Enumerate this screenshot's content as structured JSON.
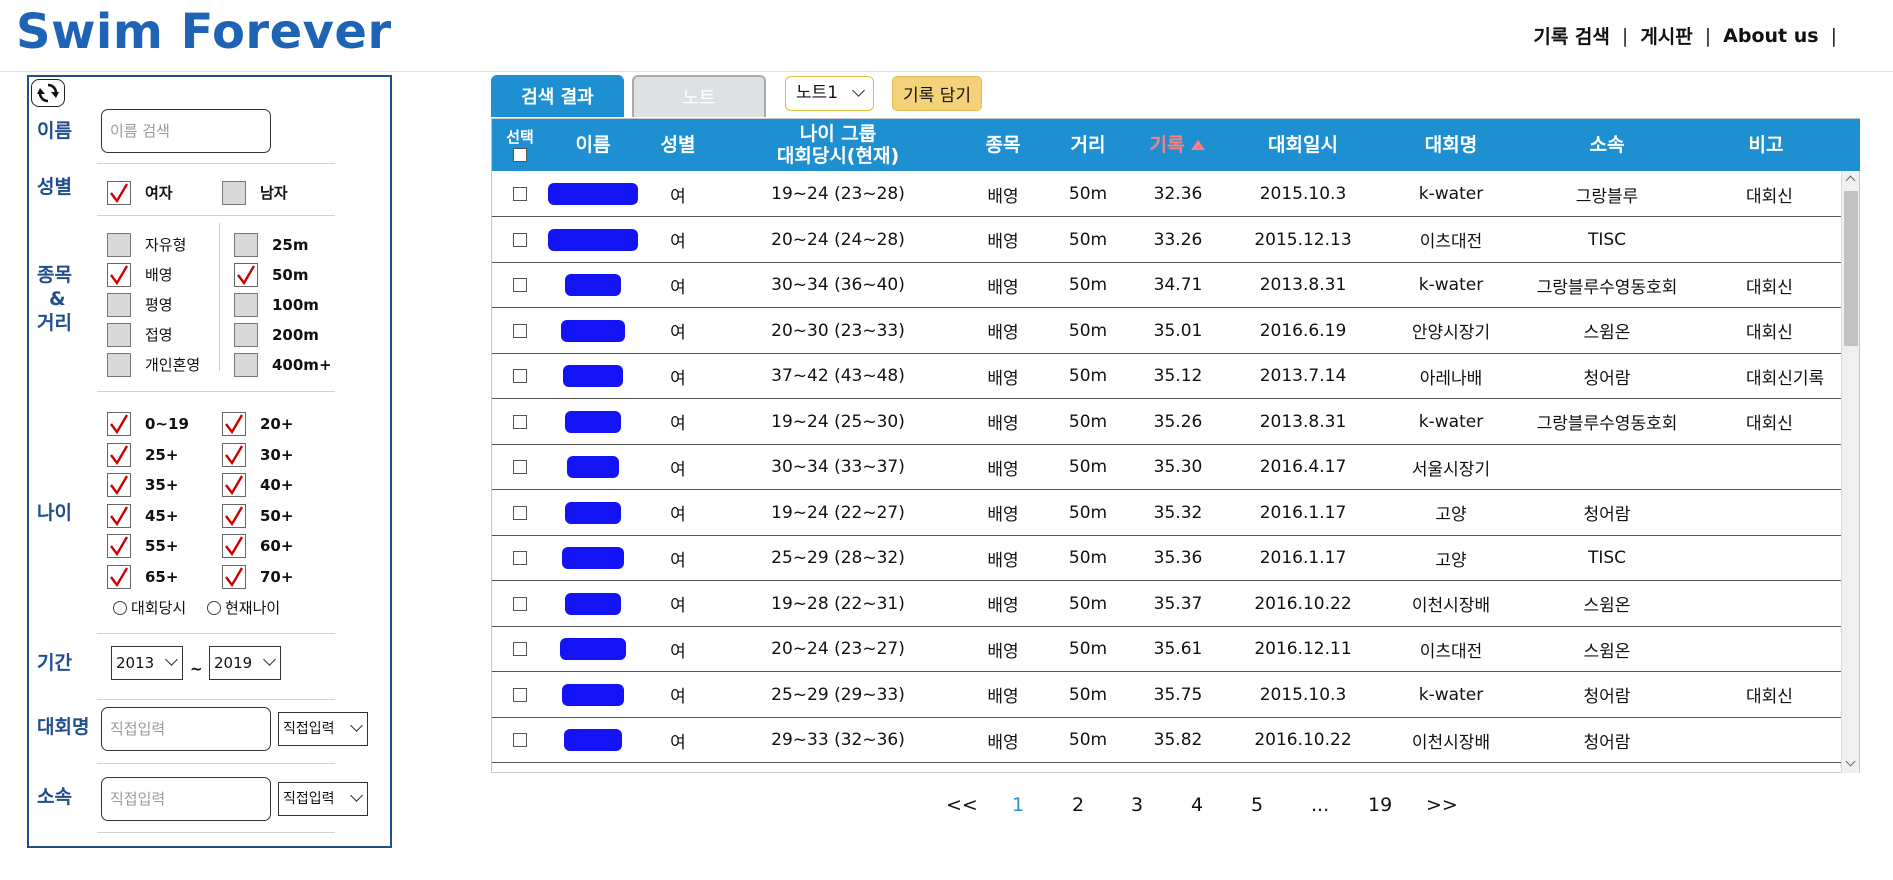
{
  "header": {
    "logo": "Swim Forever",
    "nav": [
      "기록 검색",
      "게시판",
      "About us"
    ]
  },
  "sidebar": {
    "name_label": "이름",
    "name_placeholder": "이름 검색",
    "gender_label": "성별",
    "gender": [
      {
        "label": "여자",
        "checked": true
      },
      {
        "label": "남자",
        "checked": false
      }
    ],
    "event_label_1": "종목",
    "event_label_2": "&",
    "event_label_3": "거리",
    "strokes": [
      {
        "label": "자유형",
        "checked": false
      },
      {
        "label": "배영",
        "checked": true
      },
      {
        "label": "평영",
        "checked": false
      },
      {
        "label": "접영",
        "checked": false
      },
      {
        "label": "개인혼영",
        "checked": false
      }
    ],
    "distances": [
      {
        "label": "25m",
        "checked": false
      },
      {
        "label": "50m",
        "checked": true
      },
      {
        "label": "100m",
        "checked": false
      },
      {
        "label": "200m",
        "checked": false
      },
      {
        "label": "400m+",
        "checked": false
      }
    ],
    "age_label": "나이",
    "ages": [
      {
        "label": "0~19",
        "checked": true
      },
      {
        "label": "20+",
        "checked": true
      },
      {
        "label": "25+",
        "checked": true
      },
      {
        "label": "30+",
        "checked": true
      },
      {
        "label": "35+",
        "checked": true
      },
      {
        "label": "40+",
        "checked": true
      },
      {
        "label": "45+",
        "checked": true
      },
      {
        "label": "50+",
        "checked": true
      },
      {
        "label": "55+",
        "checked": true
      },
      {
        "label": "60+",
        "checked": true
      },
      {
        "label": "65+",
        "checked": true
      },
      {
        "label": "70+",
        "checked": true
      }
    ],
    "age_mode": [
      {
        "label": "대회당시"
      },
      {
        "label": "현재나이"
      }
    ],
    "period_label": "기간",
    "period_from": "2013",
    "period_sep": "~",
    "period_to": "2019",
    "meet_label": "대회명",
    "meet_placeholder": "직접입력",
    "meet_select": "직접입력",
    "club_label": "소속",
    "club_placeholder": "직접입력",
    "club_select": "직접입력"
  },
  "tabs": {
    "results": "검색 결과",
    "note": "노트",
    "note_select": "노트1",
    "add_button": "기록 담기"
  },
  "table": {
    "headers": {
      "select": "선택",
      "name": "이름",
      "gender": "성별",
      "age_group_1": "나이 그룹",
      "age_group_2": "대회당시(현재)",
      "event": "종목",
      "distance": "거리",
      "record": "기록",
      "date": "대회일시",
      "meet": "대회명",
      "club": "소속",
      "note": "비고"
    },
    "rows": [
      {
        "gender": "여",
        "age": "19~24 (23~28)",
        "event": "배영",
        "distance": "50m",
        "record": "32.36",
        "date": "2015.10.3",
        "meet": "k-water",
        "club": "그랑블루",
        "note": "대회신"
      },
      {
        "gender": "여",
        "age": "20~24 (24~28)",
        "event": "배영",
        "distance": "50m",
        "record": "33.26",
        "date": "2015.12.13",
        "meet": "이츠대전",
        "club": "TISC",
        "note": ""
      },
      {
        "gender": "여",
        "age": "30~34 (36~40)",
        "event": "배영",
        "distance": "50m",
        "record": "34.71",
        "date": "2013.8.31",
        "meet": "k-water",
        "club": "그랑블루수영동호회",
        "note": "대회신"
      },
      {
        "gender": "여",
        "age": "20~30 (23~33)",
        "event": "배영",
        "distance": "50m",
        "record": "35.01",
        "date": "2016.6.19",
        "meet": "안양시장기",
        "club": "스윔온",
        "note": "대회신"
      },
      {
        "gender": "여",
        "age": "37~42 (43~48)",
        "event": "배영",
        "distance": "50m",
        "record": "35.12",
        "date": "2013.7.14",
        "meet": "아레나배",
        "club": "청어람",
        "note": "대회신기록"
      },
      {
        "gender": "여",
        "age": "19~24 (25~30)",
        "event": "배영",
        "distance": "50m",
        "record": "35.26",
        "date": "2013.8.31",
        "meet": "k-water",
        "club": "그랑블루수영동호회",
        "note": "대회신"
      },
      {
        "gender": "여",
        "age": "30~34 (33~37)",
        "event": "배영",
        "distance": "50m",
        "record": "35.30",
        "date": "2016.4.17",
        "meet": "서울시장기",
        "club": "",
        "note": ""
      },
      {
        "gender": "여",
        "age": "19~24 (22~27)",
        "event": "배영",
        "distance": "50m",
        "record": "35.32",
        "date": "2016.1.17",
        "meet": "고양",
        "club": "청어람",
        "note": ""
      },
      {
        "gender": "여",
        "age": "25~29 (28~32)",
        "event": "배영",
        "distance": "50m",
        "record": "35.36",
        "date": "2016.1.17",
        "meet": "고양",
        "club": "TISC",
        "note": ""
      },
      {
        "gender": "여",
        "age": "19~28 (22~31)",
        "event": "배영",
        "distance": "50m",
        "record": "35.37",
        "date": "2016.10.22",
        "meet": "이천시장배",
        "club": "스윔온",
        "note": ""
      },
      {
        "gender": "여",
        "age": "20~24 (23~27)",
        "event": "배영",
        "distance": "50m",
        "record": "35.61",
        "date": "2016.12.11",
        "meet": "이츠대전",
        "club": "스윔온",
        "note": ""
      },
      {
        "gender": "여",
        "age": "25~29 (29~33)",
        "event": "배영",
        "distance": "50m",
        "record": "35.75",
        "date": "2015.10.3",
        "meet": "k-water",
        "club": "청어람",
        "note": "대회신"
      },
      {
        "gender": "여",
        "age": "29~33 (32~36)",
        "event": "배영",
        "distance": "50m",
        "record": "35.82",
        "date": "2016.10.22",
        "meet": "이천시장배",
        "club": "청어람",
        "note": ""
      }
    ]
  },
  "pagination": {
    "first": "<<",
    "pages": [
      "1",
      "2",
      "3",
      "4",
      "5",
      "...",
      "19"
    ],
    "last": ">>",
    "current": "1"
  },
  "colors": {
    "logo": "#1f63b5",
    "table_header": "#1e90d2",
    "sort_header": "#ff7f7f",
    "add_button": "#f4d27a",
    "check_mark": "#cc0000",
    "redaction": "#1313f5"
  }
}
